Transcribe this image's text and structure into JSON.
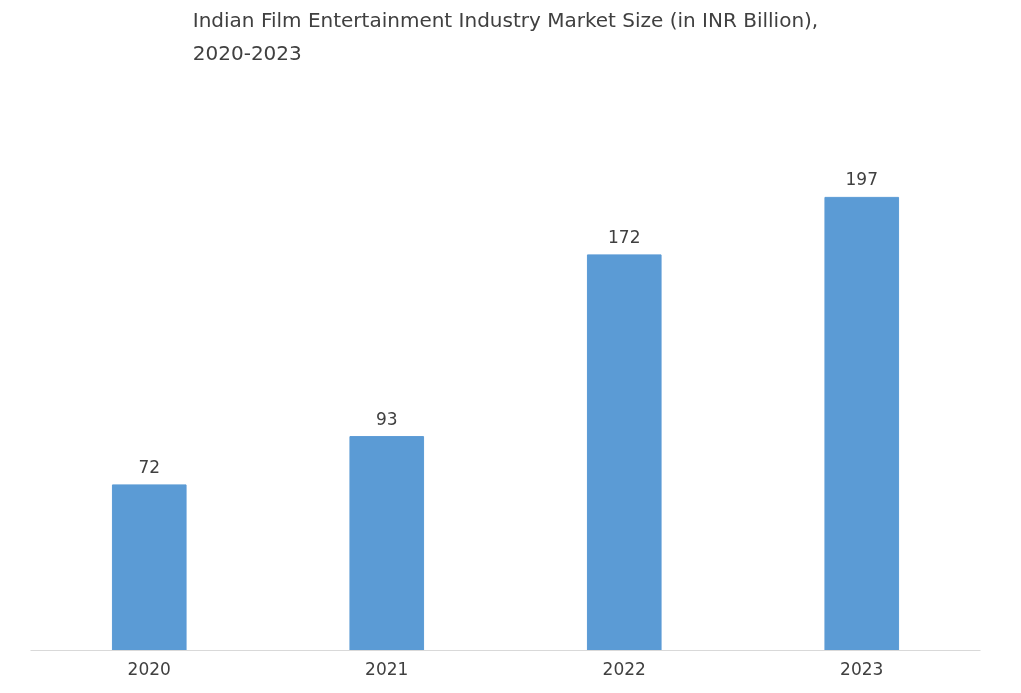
{
  "chart_data": {
    "type": "bar",
    "title": "Indian Film Entertainment Industry Market Size (in INR Billion),\n2020-2023",
    "categories": [
      "2020",
      "2021",
      "2022",
      "2023"
    ],
    "values": [
      72,
      93,
      172,
      197
    ],
    "color": "#5b9bd5",
    "data_labels": true,
    "grid": false
  }
}
